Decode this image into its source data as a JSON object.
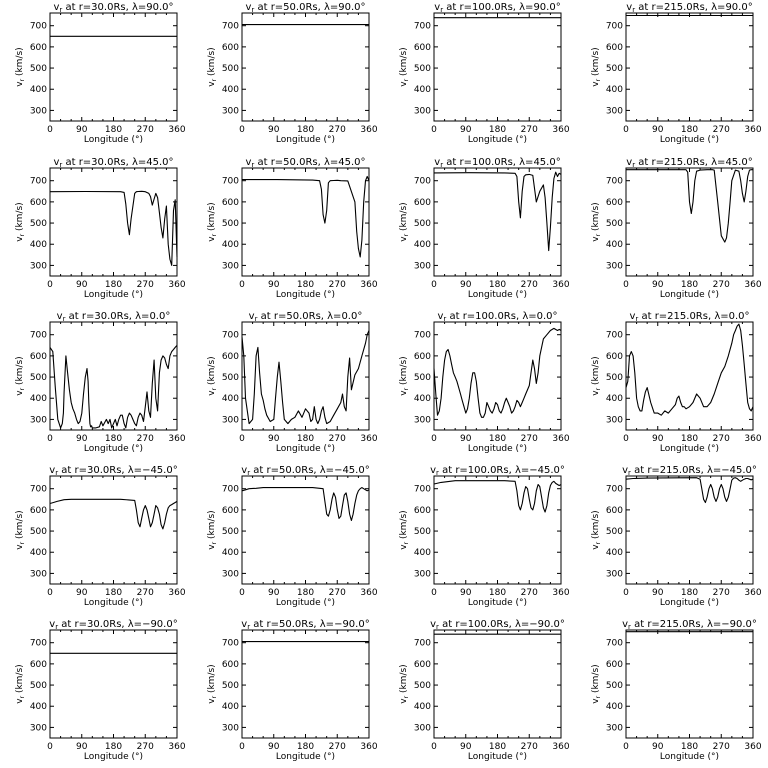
{
  "figure": {
    "rows": [
      {
        "lat": "λ=90.0°"
      },
      {
        "lat": "λ=45.0°"
      },
      {
        "lat": "λ=0.0°"
      },
      {
        "lat": "λ=−45.0°"
      },
      {
        "lat": "λ=−90.0°"
      }
    ],
    "columns": [
      {
        "radius": "r=30.0Rs"
      },
      {
        "radius": "r=50.0Rs"
      },
      {
        "radius": "r=100.0Rs"
      },
      {
        "radius": "r=215.0Rs"
      }
    ]
  },
  "chart_data": {
    "type": "line",
    "title_prefix": "v",
    "title_sub": "r",
    "title_mid": " at ",
    "xlabel": "Longitude (°)",
    "ylabel": "v",
    "ylabel_sub": "r",
    "ylabel_unit": " (km/s)",
    "xlim": [
      0,
      360
    ],
    "ylim": [
      250,
      760
    ],
    "xticks": [
      0,
      90,
      180,
      270,
      360
    ],
    "yticks": [
      300,
      400,
      500,
      600,
      700
    ],
    "panels": [
      [
        {
          "x": [
            0,
            360
          ],
          "y": [
            650,
            650
          ]
        },
        {
          "x": [
            0,
            360
          ],
          "y": [
            705,
            705
          ]
        },
        {
          "x": [
            0,
            360
          ],
          "y": [
            738,
            738
          ]
        },
        {
          "x": [
            0,
            360
          ],
          "y": [
            748,
            748
          ]
        }
      ],
      [
        {
          "x": [
            0,
            100,
            200,
            210,
            215,
            220,
            225,
            230,
            240,
            245,
            250,
            260,
            270,
            280,
            285,
            290,
            300,
            305,
            310,
            315,
            320,
            325,
            330,
            335,
            340,
            345,
            350,
            355,
            360
          ],
          "y": [
            648,
            649,
            648,
            645,
            590,
            500,
            445,
            520,
            640,
            648,
            649,
            650,
            648,
            640,
            625,
            585,
            640,
            620,
            550,
            480,
            430,
            520,
            580,
            400,
            330,
            300,
            560,
            610,
            340
          ]
        },
        {
          "x": [
            0,
            100,
            200,
            220,
            225,
            230,
            235,
            240,
            245,
            250,
            260,
            270,
            280,
            300,
            320,
            325,
            330,
            335,
            340,
            345,
            350,
            355,
            360
          ],
          "y": [
            705,
            705,
            703,
            700,
            660,
            540,
            500,
            560,
            690,
            700,
            701,
            702,
            700,
            699,
            600,
            460,
            380,
            340,
            420,
            600,
            700,
            720,
            700
          ]
        },
        {
          "x": [
            0,
            100,
            200,
            230,
            235,
            240,
            245,
            250,
            255,
            260,
            270,
            280,
            290,
            300,
            310,
            315,
            320,
            325,
            330,
            335,
            340,
            345,
            350,
            355,
            360
          ],
          "y": [
            737,
            738,
            737,
            735,
            720,
            600,
            525,
            650,
            720,
            728,
            730,
            725,
            600,
            650,
            680,
            620,
            500,
            370,
            480,
            620,
            710,
            740,
            720,
            735,
            730
          ]
        },
        {
          "x": [
            0,
            100,
            170,
            175,
            180,
            185,
            190,
            195,
            200,
            210,
            230,
            245,
            250,
            260,
            270,
            280,
            285,
            290,
            295,
            300,
            310,
            320,
            325,
            330,
            335,
            340,
            345,
            350,
            355,
            360
          ],
          "y": [
            752,
            752,
            752,
            740,
            600,
            545,
            600,
            700,
            745,
            750,
            752,
            752,
            750,
            600,
            440,
            410,
            430,
            500,
            600,
            700,
            750,
            745,
            700,
            640,
            600,
            650,
            720,
            750,
            752,
            752
          ]
        }
      ],
      [
        {
          "x": [
            0,
            8,
            15,
            22,
            30,
            35,
            38,
            40,
            45,
            50,
            55,
            60,
            65,
            70,
            75,
            80,
            85,
            90,
            95,
            100,
            105,
            108,
            110,
            113,
            115,
            118,
            120,
            130,
            140,
            145,
            150,
            160,
            165,
            170,
            175,
            180,
            185,
            190,
            195,
            200,
            205,
            210,
            215,
            220,
            225,
            230,
            235,
            240,
            245,
            250,
            255,
            260,
            265,
            270,
            275,
            280,
            285,
            290,
            295,
            300,
            305,
            310,
            315,
            320,
            325,
            330,
            335,
            340,
            345,
            350,
            355,
            360
          ],
          "y": [
            640,
            620,
            450,
            300,
            260,
            280,
            330,
            430,
            600,
            520,
            440,
            380,
            350,
            330,
            300,
            280,
            290,
            330,
            420,
            500,
            540,
            480,
            380,
            280,
            265,
            270,
            260,
            260,
            265,
            290,
            270,
            300,
            280,
            300,
            260,
            280,
            300,
            270,
            300,
            320,
            320,
            280,
            260,
            310,
            330,
            320,
            300,
            280,
            270,
            310,
            330,
            320,
            290,
            360,
            430,
            340,
            310,
            470,
            580,
            400,
            340,
            520,
            580,
            600,
            590,
            560,
            540,
            600,
            620,
            630,
            640,
            650
          ]
        },
        {
          "x": [
            0,
            5,
            10,
            20,
            30,
            35,
            40,
            45,
            50,
            55,
            60,
            65,
            70,
            80,
            90,
            95,
            100,
            105,
            110,
            115,
            120,
            125,
            130,
            135,
            140,
            150,
            160,
            170,
            180,
            190,
            195,
            200,
            205,
            210,
            215,
            220,
            225,
            230,
            235,
            240,
            250,
            260,
            270,
            280,
            285,
            290,
            295,
            300,
            305,
            310,
            320,
            330,
            340,
            350,
            355,
            360
          ],
          "y": [
            690,
            600,
            400,
            280,
            300,
            420,
            600,
            640,
            520,
            420,
            390,
            350,
            320,
            290,
            300,
            400,
            500,
            570,
            480,
            380,
            300,
            290,
            280,
            290,
            300,
            310,
            340,
            310,
            350,
            330,
            290,
            300,
            360,
            300,
            280,
            300,
            340,
            360,
            310,
            280,
            290,
            320,
            350,
            380,
            420,
            360,
            340,
            500,
            590,
            440,
            510,
            540,
            600,
            660,
            700,
            720
          ]
        },
        {
          "x": [
            0,
            5,
            10,
            15,
            20,
            25,
            30,
            35,
            40,
            45,
            50,
            55,
            60,
            65,
            70,
            75,
            80,
            85,
            90,
            95,
            100,
            105,
            110,
            115,
            120,
            125,
            130,
            135,
            140,
            145,
            150,
            155,
            160,
            165,
            170,
            175,
            180,
            185,
            190,
            195,
            200,
            205,
            210,
            215,
            220,
            225,
            230,
            235,
            240,
            245,
            250,
            255,
            260,
            270,
            275,
            280,
            285,
            290,
            295,
            300,
            305,
            310,
            320,
            330,
            340,
            350,
            355,
            360
          ],
          "y": [
            540,
            420,
            320,
            340,
            400,
            500,
            580,
            620,
            630,
            600,
            560,
            520,
            500,
            480,
            450,
            420,
            390,
            360,
            330,
            350,
            400,
            470,
            520,
            520,
            480,
            400,
            330,
            310,
            310,
            330,
            380,
            360,
            340,
            330,
            350,
            380,
            370,
            340,
            330,
            350,
            380,
            400,
            380,
            360,
            330,
            340,
            360,
            390,
            380,
            360,
            380,
            400,
            420,
            460,
            520,
            580,
            540,
            470,
            520,
            600,
            640,
            680,
            700,
            720,
            730,
            720,
            725,
            720
          ]
        },
        {
          "x": [
            0,
            5,
            10,
            15,
            20,
            25,
            30,
            35,
            40,
            45,
            50,
            55,
            60,
            70,
            80,
            90,
            100,
            110,
            120,
            130,
            140,
            145,
            150,
            155,
            160,
            165,
            170,
            180,
            190,
            200,
            210,
            220,
            230,
            240,
            250,
            260,
            270,
            280,
            290,
            300,
            305,
            310,
            315,
            320,
            325,
            330,
            335,
            340,
            345,
            350,
            355,
            360
          ],
          "y": [
            450,
            480,
            600,
            620,
            600,
            520,
            400,
            360,
            340,
            340,
            390,
            430,
            450,
            380,
            330,
            330,
            320,
            340,
            330,
            350,
            370,
            400,
            410,
            380,
            360,
            360,
            350,
            360,
            380,
            420,
            400,
            360,
            360,
            380,
            420,
            470,
            520,
            550,
            600,
            660,
            700,
            720,
            740,
            750,
            720,
            650,
            560,
            470,
            380,
            350,
            340,
            360
          ]
        }
      ],
      [
        {
          "x": [
            0,
            10,
            20,
            40,
            60,
            100,
            200,
            240,
            245,
            250,
            255,
            260,
            265,
            270,
            275,
            280,
            285,
            290,
            295,
            300,
            305,
            310,
            315,
            320,
            325,
            330,
            335,
            340,
            345,
            350,
            355,
            360
          ],
          "y": [
            630,
            635,
            640,
            648,
            650,
            650,
            650,
            645,
            600,
            540,
            520,
            560,
            600,
            620,
            600,
            560,
            520,
            540,
            580,
            620,
            610,
            580,
            530,
            510,
            540,
            580,
            610,
            620,
            625,
            630,
            635,
            640
          ]
        },
        {
          "x": [
            0,
            10,
            20,
            40,
            60,
            100,
            200,
            230,
            235,
            240,
            245,
            250,
            255,
            260,
            265,
            270,
            275,
            280,
            285,
            290,
            295,
            300,
            305,
            310,
            315,
            320,
            325,
            330,
            335,
            340,
            345,
            350,
            355,
            360
          ],
          "y": [
            690,
            695,
            700,
            702,
            705,
            705,
            705,
            700,
            640,
            580,
            570,
            600,
            650,
            680,
            660,
            600,
            560,
            570,
            620,
            670,
            680,
            640,
            580,
            550,
            580,
            630,
            670,
            690,
            700,
            705,
            700,
            695,
            690,
            695
          ]
        },
        {
          "x": [
            0,
            20,
            60,
            200,
            230,
            235,
            240,
            245,
            250,
            255,
            260,
            265,
            270,
            275,
            280,
            285,
            290,
            295,
            300,
            305,
            310,
            315,
            320,
            325,
            330,
            335,
            340,
            345,
            350,
            355,
            360
          ],
          "y": [
            722,
            730,
            738,
            738,
            735,
            690,
            620,
            600,
            630,
            680,
            710,
            700,
            650,
            610,
            600,
            630,
            690,
            720,
            710,
            660,
            610,
            590,
            620,
            680,
            715,
            730,
            735,
            725,
            720,
            715,
            720
          ]
        },
        {
          "x": [
            0,
            20,
            60,
            200,
            210,
            215,
            220,
            225,
            230,
            235,
            240,
            245,
            250,
            255,
            260,
            265,
            270,
            275,
            280,
            285,
            290,
            295,
            300,
            305,
            310,
            315,
            320,
            325,
            330,
            335,
            340,
            345,
            350,
            355,
            360
          ],
          "y": [
            745,
            748,
            750,
            752,
            745,
            700,
            650,
            635,
            660,
            700,
            720,
            700,
            660,
            640,
            660,
            700,
            720,
            700,
            660,
            640,
            660,
            700,
            740,
            750,
            752,
            748,
            740,
            735,
            740,
            745,
            748,
            748,
            745,
            742,
            745
          ]
        }
      ],
      [
        {
          "x": [
            0,
            360
          ],
          "y": [
            650,
            650
          ]
        },
        {
          "x": [
            0,
            360
          ],
          "y": [
            705,
            705
          ]
        },
        {
          "x": [
            0,
            360
          ],
          "y": [
            740,
            740
          ]
        },
        {
          "x": [
            0,
            360
          ],
          "y": [
            752,
            752
          ]
        }
      ]
    ]
  }
}
